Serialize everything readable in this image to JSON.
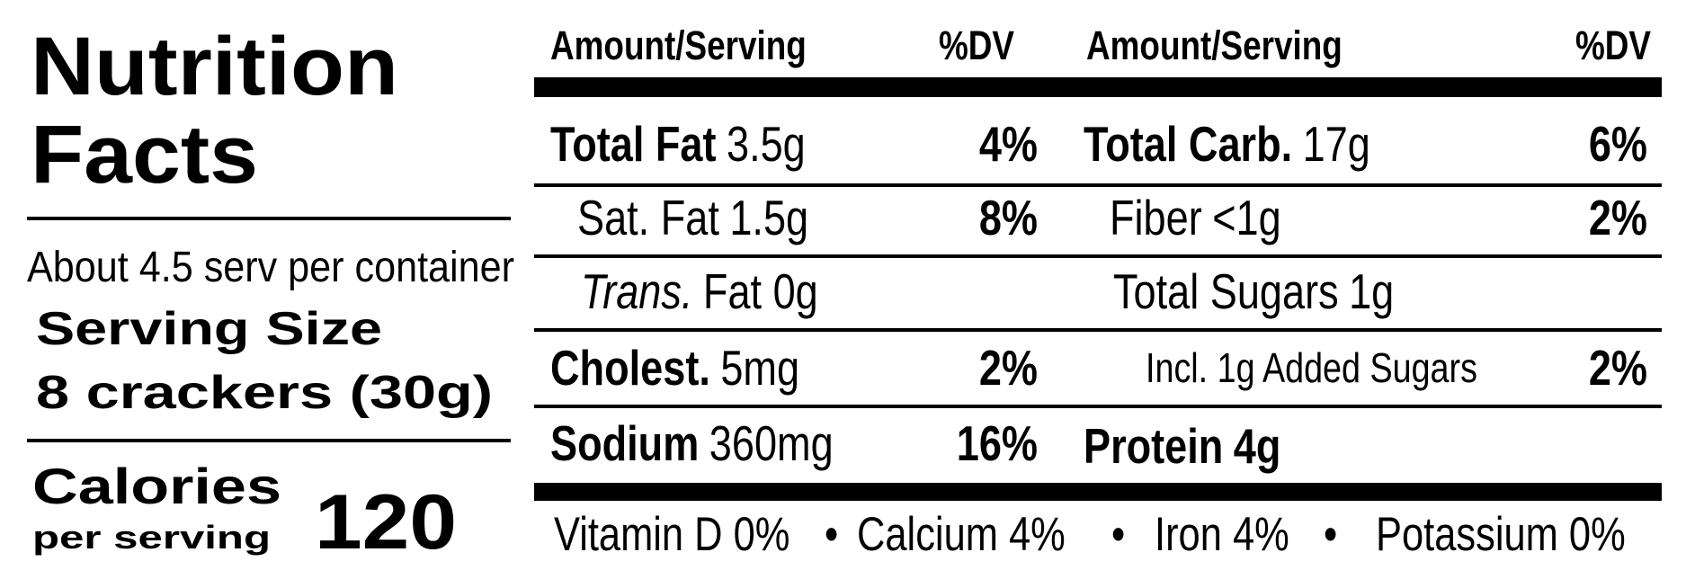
{
  "title_lines": [
    "Nutrition",
    "Facts"
  ],
  "servings_per_container": "About 4.5 serv per container",
  "serving_size": {
    "label": "Serving Size",
    "value": "8 crackers (30g)"
  },
  "calories": {
    "label": "Calories",
    "sublabel": "per serving",
    "value": "120"
  },
  "columns": [
    {
      "amount": "Amount/Serving",
      "dv": "%DV"
    },
    {
      "amount": "Amount/Serving",
      "dv": "%DV"
    }
  ],
  "left_rows": [
    {
      "label": "Total Fat",
      "amount": "3.5g",
      "dv": "4%"
    },
    {
      "label": "Sat. Fat",
      "amount": "1.5g",
      "dv": "8%"
    },
    {
      "label": "Trans.",
      "amount": "Fat 0g"
    },
    {
      "label": "Cholest.",
      "amount": "5mg",
      "dv": "2%"
    },
    {
      "label": "Sodium",
      "amount": "360mg",
      "dv": "16%"
    }
  ],
  "right_rows": [
    {
      "label": "Total Carb.",
      "amount": "17g",
      "dv": "6%"
    },
    {
      "label": "Fiber",
      "amount": "<1g",
      "dv": "2%"
    },
    {
      "label": "Total Sugars",
      "amount": "1g"
    },
    {
      "label": "Incl. 1g Added Sugars",
      "dv": "2%"
    },
    {
      "label": "Protein",
      "amount": "4g"
    }
  ],
  "footer": {
    "items": [
      "Vitamin D 0%",
      "Calcium 4%",
      "Iron 4%",
      "Potassium 0%"
    ],
    "separator": "•"
  }
}
